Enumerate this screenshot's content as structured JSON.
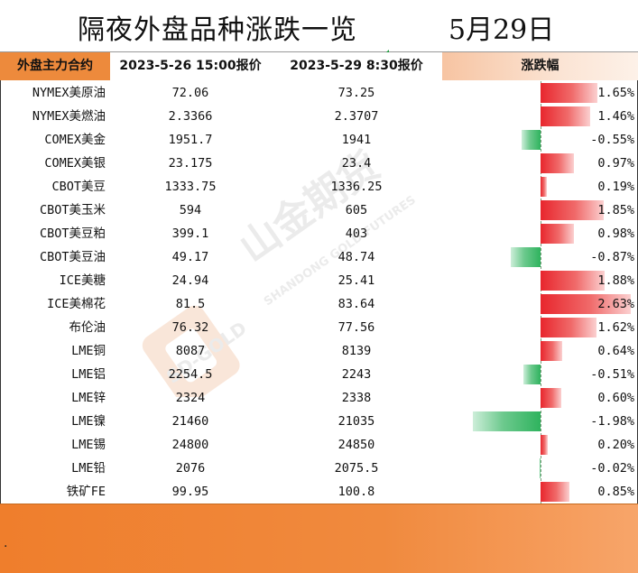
{
  "title": "隔夜外盘品种涨跌一览",
  "date": "5月29日",
  "header": {
    "name": "外盘主力合约",
    "price1": "2023-5-26 15:00报价",
    "price2": "2023-5-29 8:30报价",
    "change": "涨跌幅"
  },
  "watermark": {
    "brand_cn": "山金期货",
    "brand_en": "SHANDONG GOLD FUTURES",
    "brand_en2": "SD-GOLD"
  },
  "colors": {
    "accent": "#ED8A3C",
    "up": "#E8262D",
    "down": "#2FB35E"
  },
  "rows": [
    {
      "name": "NYMEX美原油",
      "p1": "72.06",
      "p2": "73.25",
      "pct": "1.65%",
      "value": 1.65
    },
    {
      "name": "NYMEX美燃油",
      "p1": "2.3366",
      "p2": "2.3707",
      "pct": "1.46%",
      "value": 1.46
    },
    {
      "name": "COMEX美金",
      "p1": "1951.7",
      "p2": "1941",
      "pct": "-0.55%",
      "value": -0.55
    },
    {
      "name": "COMEX美银",
      "p1": "23.175",
      "p2": "23.4",
      "pct": "0.97%",
      "value": 0.97
    },
    {
      "name": "CBOT美豆",
      "p1": "1333.75",
      "p2": "1336.25",
      "pct": "0.19%",
      "value": 0.19
    },
    {
      "name": "CBOT美玉米",
      "p1": "594",
      "p2": "605",
      "pct": "1.85%",
      "value": 1.85
    },
    {
      "name": "CBOT美豆粕",
      "p1": "399.1",
      "p2": "403",
      "pct": "0.98%",
      "value": 0.98
    },
    {
      "name": "CBOT美豆油",
      "p1": "49.17",
      "p2": "48.74",
      "pct": "-0.87%",
      "value": -0.87
    },
    {
      "name": "ICE美糖",
      "p1": "24.94",
      "p2": "25.41",
      "pct": "1.88%",
      "value": 1.88
    },
    {
      "name": "ICE美棉花",
      "p1": "81.5",
      "p2": "83.64",
      "pct": "2.63%",
      "value": 2.63
    },
    {
      "name": "布伦油",
      "p1": "76.32",
      "p2": "77.56",
      "pct": "1.62%",
      "value": 1.62
    },
    {
      "name": "LME铜",
      "p1": "8087",
      "p2": "8139",
      "pct": "0.64%",
      "value": 0.64
    },
    {
      "name": "LME铝",
      "p1": "2254.5",
      "p2": "2243",
      "pct": "-0.51%",
      "value": -0.51
    },
    {
      "name": "LME锌",
      "p1": "2324",
      "p2": "2338",
      "pct": "0.60%",
      "value": 0.6
    },
    {
      "name": "LME镍",
      "p1": "21460",
      "p2": "21035",
      "pct": "-1.98%",
      "value": -1.98
    },
    {
      "name": "LME锡",
      "p1": "24800",
      "p2": "24850",
      "pct": "0.20%",
      "value": 0.2
    },
    {
      "name": "LME铅",
      "p1": "2076",
      "p2": "2075.5",
      "pct": "-0.02%",
      "value": -0.02
    },
    {
      "name": "铁矿FE",
      "p1": "99.95",
      "p2": "100.8",
      "pct": "0.85%",
      "value": 0.85
    }
  ],
  "footer": {
    "note": "."
  }
}
